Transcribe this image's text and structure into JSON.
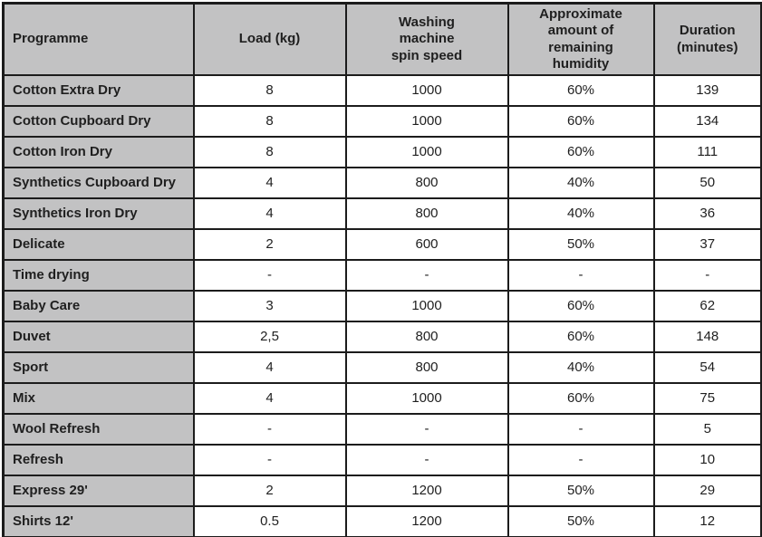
{
  "colors": {
    "header_bg": "#c2c2c3",
    "programme_bg": "#c2c2c3",
    "cell_bg": "#ffffff",
    "border": "#1c1c1c",
    "text": "#1f1f1f"
  },
  "table": {
    "headers": {
      "programme": "Programme",
      "load": "Load (kg)",
      "spin": "Washing\nmachine\nspin speed",
      "humidity": "Approximate\namount of\nremaining\nhumidity",
      "duration": "Duration\n(minutes)"
    },
    "rows": [
      {
        "programme": "Cotton Extra Dry",
        "load": "8",
        "spin": "1000",
        "humidity": "60%",
        "duration": "139"
      },
      {
        "programme": "Cotton Cupboard Dry",
        "load": "8",
        "spin": "1000",
        "humidity": "60%",
        "duration": "134"
      },
      {
        "programme": "Cotton Iron Dry",
        "load": "8",
        "spin": "1000",
        "humidity": "60%",
        "duration": "111"
      },
      {
        "programme": "Synthetics Cupboard Dry",
        "load": "4",
        "spin": "800",
        "humidity": "40%",
        "duration": "50"
      },
      {
        "programme": "Synthetics Iron Dry",
        "load": "4",
        "spin": "800",
        "humidity": "40%",
        "duration": "36"
      },
      {
        "programme": "Delicate",
        "load": "2",
        "spin": "600",
        "humidity": "50%",
        "duration": "37"
      },
      {
        "programme": "Time drying",
        "load": "-",
        "spin": "-",
        "humidity": "-",
        "duration": "-"
      },
      {
        "programme": "Baby Care",
        "load": "3",
        "spin": "1000",
        "humidity": "60%",
        "duration": "62"
      },
      {
        "programme": "Duvet",
        "load": "2,5",
        "spin": "800",
        "humidity": "60%",
        "duration": "148"
      },
      {
        "programme": "Sport",
        "load": "4",
        "spin": "800",
        "humidity": "40%",
        "duration": "54"
      },
      {
        "programme": "Mix",
        "load": "4",
        "spin": "1000",
        "humidity": "60%",
        "duration": "75"
      },
      {
        "programme": "Wool Refresh",
        "load": "-",
        "spin": "-",
        "humidity": "-",
        "duration": "5"
      },
      {
        "programme": "Refresh",
        "load": "-",
        "spin": "-",
        "humidity": "-",
        "duration": "10"
      },
      {
        "programme": "Express 29'",
        "load": "2",
        "spin": "1200",
        "humidity": "50%",
        "duration": "29"
      },
      {
        "programme": "Shirts 12'",
        "load": "0.5",
        "spin": "1200",
        "humidity": "50%",
        "duration": "12"
      }
    ]
  }
}
